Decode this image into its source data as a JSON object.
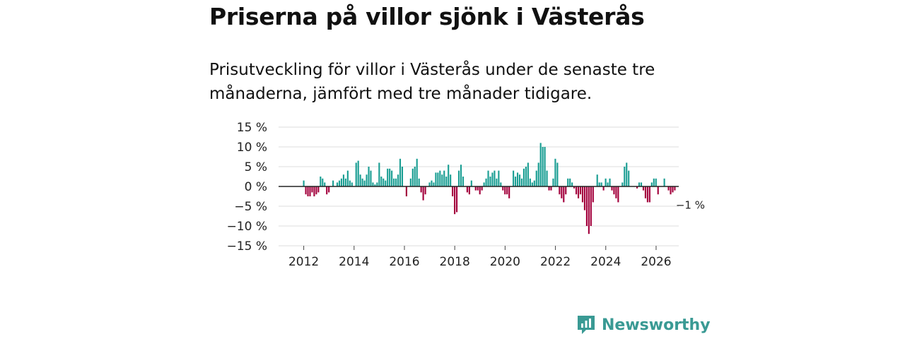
{
  "header": {
    "title": "Priserna på villor sjönk i Västerås",
    "subtitle": "Prisutveckling för villor i Västerås under de senaste tre månaderna, jämfört med tre månader tidigare."
  },
  "brand": {
    "name": "Newsworthy"
  },
  "colors": {
    "positive": "#1a9e93",
    "negative": "#a3003c",
    "grid": "#dddddd",
    "brand": "#3a9a94"
  },
  "chart_data": {
    "type": "bar",
    "title": "Priserna på villor sjönk i Västerås",
    "subtitle": "Prisutveckling för villor i Västerås under de senaste tre månaderna, jämfört med tre månader tidigare.",
    "xlabel": "",
    "ylabel": "",
    "ylim": [
      -15,
      15
    ],
    "xlim": [
      2011.0,
      2026.9
    ],
    "y_ticks": [
      15,
      10,
      5,
      0,
      -5,
      -10,
      -15
    ],
    "y_tick_labels": [
      "15 %",
      "10 %",
      "5 %",
      "0 %",
      "−5 %",
      "−10 %",
      "−15 %"
    ],
    "x_ticks": [
      2012,
      2014,
      2016,
      2018,
      2020,
      2022,
      2024,
      2026
    ],
    "x_tick_labels": [
      "2012",
      "2014",
      "2016",
      "2018",
      "2020",
      "2022",
      "2024",
      "2026"
    ],
    "start": 2011.5,
    "step": 0.0833,
    "values": [
      0,
      0,
      0,
      0,
      0,
      0,
      1.5,
      -2,
      -2.5,
      -2.5,
      -1.5,
      -2.5,
      -2,
      -1.5,
      2.5,
      2,
      1,
      -2,
      -1.5,
      0,
      1.5,
      0,
      1,
      1.5,
      2,
      3,
      2,
      4,
      1.5,
      1,
      0,
      6,
      6.5,
      3,
      2,
      1.5,
      3,
      5,
      4,
      1,
      0.5,
      1,
      6,
      2.5,
      2,
      1.5,
      4.5,
      4.5,
      4,
      2,
      2,
      3,
      7,
      5,
      0,
      -2.5,
      0,
      2,
      4.5,
      5,
      7,
      2,
      -1.5,
      -3.5,
      -2,
      0,
      1,
      1.5,
      1,
      3.5,
      3.5,
      4,
      3,
      4,
      2.5,
      5.5,
      3,
      -2.5,
      -7,
      -6.5,
      4,
      5.5,
      2.5,
      0,
      -1.5,
      -2,
      1.5,
      0,
      -1,
      -1,
      -2,
      -1,
      1,
      2,
      4,
      2.5,
      3.5,
      4,
      2,
      4,
      1,
      -1,
      -2,
      -2,
      -3,
      0,
      4,
      2.5,
      3.5,
      3,
      2,
      4.5,
      5,
      6,
      2,
      1,
      1.5,
      4,
      6,
      11,
      10,
      10,
      4,
      -1,
      -1,
      2,
      7,
      6,
      -2,
      -3,
      -4,
      -2,
      2,
      2,
      1,
      -0.5,
      -2,
      -3,
      -2,
      -4,
      -6,
      -10,
      -12,
      -10,
      -4,
      0,
      3,
      1,
      1,
      -1,
      2,
      1,
      2,
      -1,
      -2,
      -3,
      -4,
      0,
      1,
      5,
      6,
      4,
      0,
      0,
      0,
      -0.5,
      1,
      1,
      -1,
      -3,
      -4,
      -4,
      1,
      2,
      2,
      -2,
      0,
      0,
      2,
      0,
      -1,
      -2,
      -1.5,
      -1
    ],
    "last_value_label": "−1 %"
  }
}
